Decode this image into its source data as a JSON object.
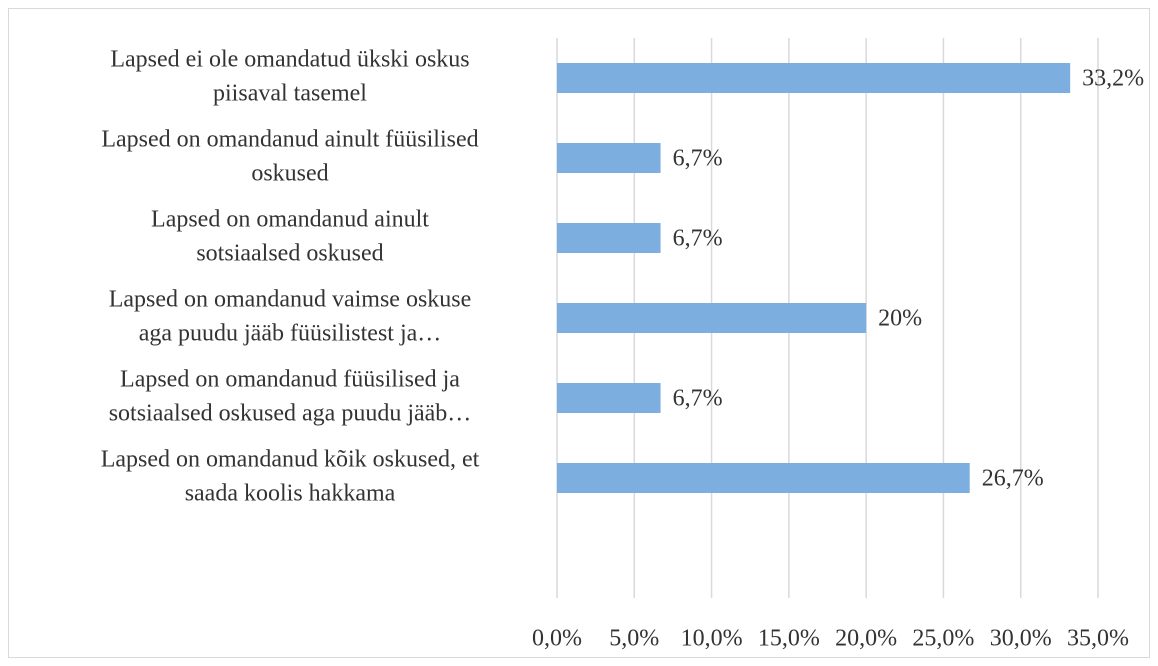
{
  "chart_data": {
    "type": "bar",
    "orientation": "horizontal",
    "categories": [
      [
        "Lapsed ei ole omandatud ükski oskus",
        "piisaval tasemel"
      ],
      [
        "Lapsed on omandanud ainult füüsilised",
        "oskused"
      ],
      [
        "Lapsed on omandanud ainult",
        "sotsiaalsed oskused"
      ],
      [
        "Lapsed on omandanud vaimse oskuse",
        "aga puudu jääb füüsilistest ja…"
      ],
      [
        "Lapsed on omandanud füüsilised ja",
        "sotsiaalsed oskused aga puudu jääb…"
      ],
      [
        "Lapsed on omandanud kõik oskused, et",
        "saada koolis hakkama"
      ],
      null
    ],
    "values": [
      33.2,
      6.7,
      6.7,
      20,
      6.7,
      26.7,
      null
    ],
    "value_labels": [
      "33,2%",
      "6,7%",
      "6,7%",
      "20%",
      "6,7%",
      "26,7%",
      null
    ],
    "color": "#7cafdf",
    "xlim": [
      0,
      35
    ],
    "xticks": [
      {
        "value": 0,
        "label": "0,0%"
      },
      {
        "value": 5,
        "label": "5,0%"
      },
      {
        "value": 10,
        "label": "10,0%"
      },
      {
        "value": 15,
        "label": "15,0%"
      },
      {
        "value": 20,
        "label": "20,0%"
      },
      {
        "value": 25,
        "label": "25,0%"
      },
      {
        "value": 30,
        "label": "30,0%"
      },
      {
        "value": 35,
        "label": "35,0%"
      }
    ],
    "grid": true
  }
}
